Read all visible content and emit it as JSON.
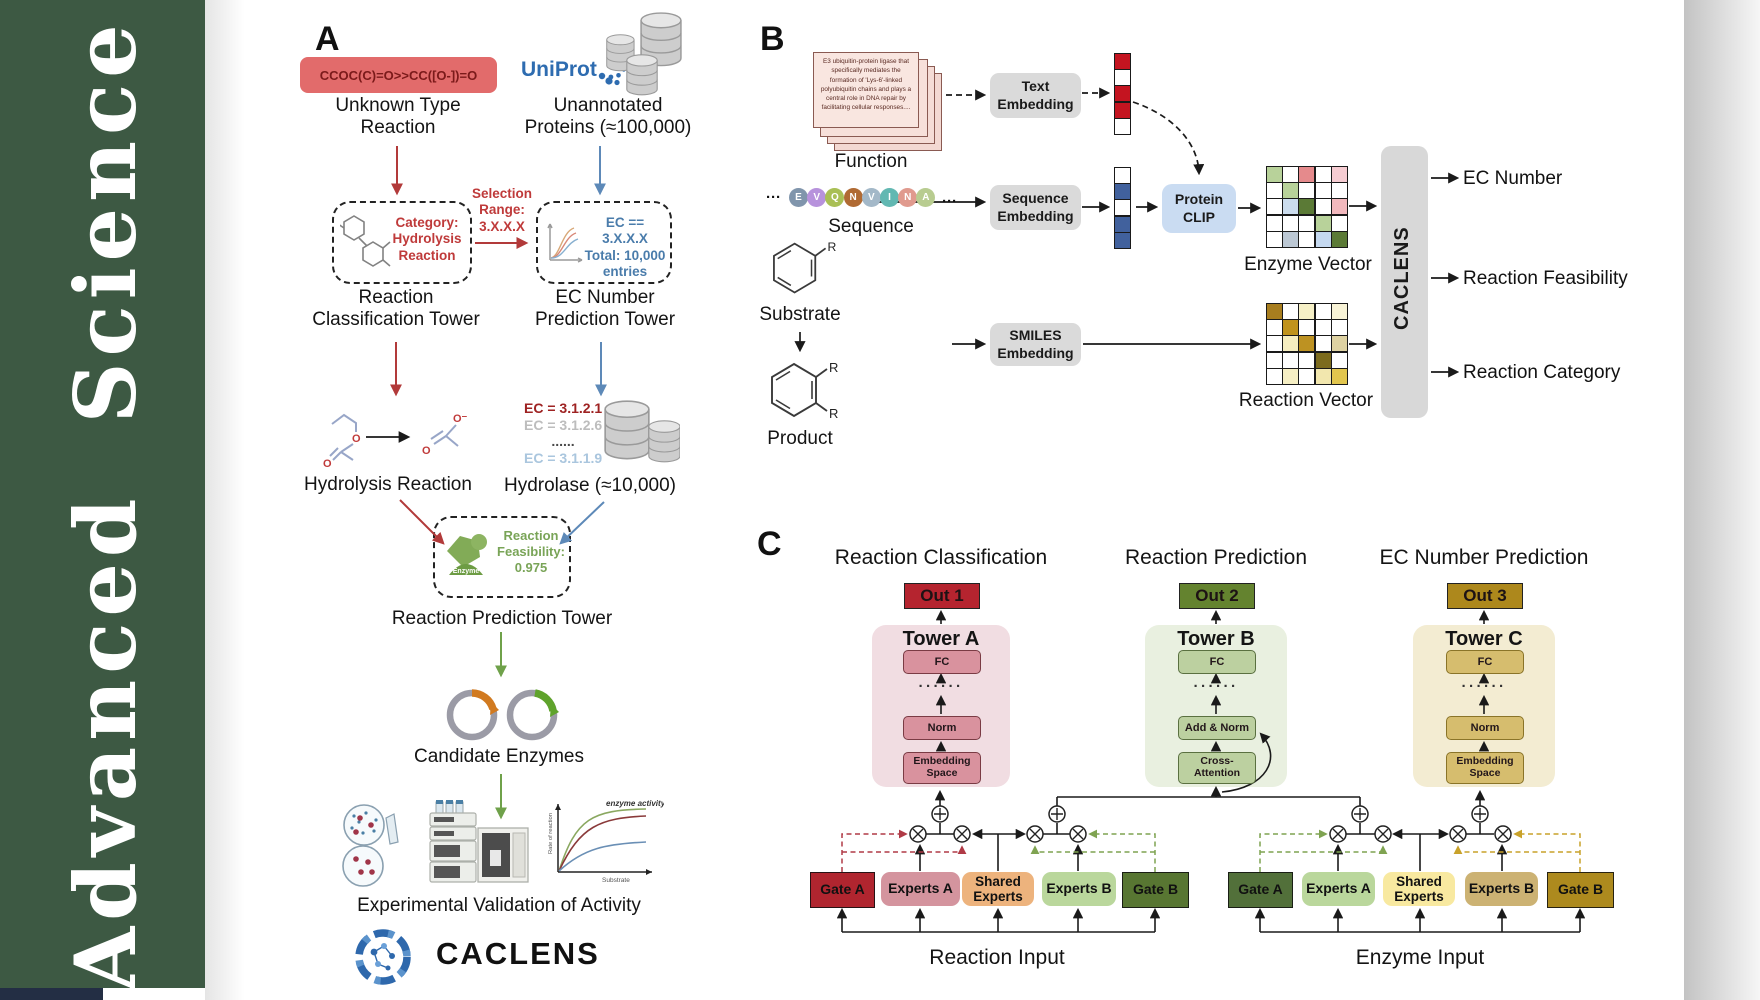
{
  "journal": {
    "name": "Advanced Science",
    "sidebar_bg": "#3d5943"
  },
  "panelA": {
    "label": "A",
    "smiles": "CCOC(C)=O>>CC([O-])=O",
    "smiles_bg": "#e26b6b",
    "unknown_type": "Unknown Type\nReaction",
    "uniprot": "UniProt",
    "unannotated": "Unannotated\nProteins (≈100,000)",
    "category_box": "Category:\nHydrolysis\nReaction",
    "selection": "Selection\nRange:\n3.X.X.X",
    "ec_box": "EC == 3.X.X.X\nTotal: 10,000\nentries",
    "classification_tower": "Reaction\nClassification Tower",
    "ec_tower": "EC Number\nPrediction Tower",
    "hydrolysis_reaction": "Hydrolysis Reaction",
    "ec_list": [
      {
        "text": "EC = 3.1.2.1",
        "color": "#9e2222"
      },
      {
        "text": "EC = 3.1.2.6",
        "color": "#bdbdbd"
      },
      {
        "text": "......",
        "color": "#4a4a4a"
      },
      {
        "text": "EC = 3.1.1.9",
        "color": "#aac6de"
      }
    ],
    "hydrolase": "Hydrolase (≈10,000)",
    "feasibility": "Reaction\nFeasibility:\n0.975",
    "enzyme_badge": "Enzyme",
    "prediction_tower": "Reaction Prediction Tower",
    "candidate_enzymes": "Candidate Enzymes",
    "validation": "Experimental Validation of Activity",
    "kinetics": {
      "annotation": "enzyme activity",
      "ylabel": "Rate of reaction",
      "xlabel": "Substrate"
    },
    "logo": "CACLENS"
  },
  "panelB": {
    "label": "B",
    "function_card": "E3 ubiquitin-protein ligase that specifically mediates the formation of 'Lys-6'-linked polyubiquitin chains and plays a central role in DNA repair by facilitating cellular responses....",
    "function": "Function",
    "dots": "···",
    "residues": [
      {
        "letter": "E",
        "color": "#8095ac"
      },
      {
        "letter": "V",
        "color": "#b792dc"
      },
      {
        "letter": "Q",
        "color": "#a9bf55"
      },
      {
        "letter": "N",
        "color": "#b06a33"
      },
      {
        "letter": "V",
        "color": "#a3b8c8"
      },
      {
        "letter": "I",
        "color": "#62b8b2"
      },
      {
        "letter": "N",
        "color": "#e09a8e"
      },
      {
        "letter": "A",
        "color": "#b8cc90"
      }
    ],
    "sequence": "Sequence",
    "substrate": "Substrate",
    "product": "Product",
    "r_group": "R",
    "text_embedding": "Text\nEmbedding",
    "sequence_embedding": "Sequence\nEmbedding",
    "smiles_embedding": "SMILES\nEmbedding",
    "protein_clip": "Protein\nCLIP",
    "protein_clip_bg": "#cadcf2",
    "text_vector": [
      "#c41420",
      "#ffffff",
      "#c41420",
      "#c41420",
      "#ffffff"
    ],
    "sequence_vector": [
      "#ffffff",
      "#41619d",
      "#ffffff",
      "#41619d",
      "#41619d"
    ],
    "enzyme_vector_label": "Enzyme Vector",
    "reaction_vector_label": "Reaction Vector",
    "enzyme_vector_grid": [
      [
        "#b8d29a",
        "#ffffff",
        "#e58a8c",
        "#ffffff",
        "#f6ccd2"
      ],
      [
        "#ffffff",
        "#b8d29a",
        "#ffffff",
        "#ffffff",
        "#ffffff"
      ],
      [
        "#ffffff",
        "#ccddee",
        "#5b7a36",
        "#ffffff",
        "#f2b8bd"
      ],
      [
        "#ffffff",
        "#ffffff",
        "#ffffff",
        "#b8d29a",
        "#ffffff"
      ],
      [
        "#ffffff",
        "#bcc8d4",
        "#ffffff",
        "#c5d9f0",
        "#5b7a36"
      ]
    ],
    "reaction_vector_grid": [
      [
        "#a87e1f",
        "#ffffff",
        "#f6f0c6",
        "#ffffff",
        "#f8f3d6"
      ],
      [
        "#ffffff",
        "#c0931d",
        "#ffffff",
        "#ffffff",
        "#ffffff"
      ],
      [
        "#ffffff",
        "#f6eec0",
        "#bd9222",
        "#ffffff",
        "#ded2a2"
      ],
      [
        "#ffffff",
        "#ffffff",
        "#ffffff",
        "#7c6b1d",
        "#ffffff"
      ],
      [
        "#ffffff",
        "#f6efc4",
        "#ffffff",
        "#f2e7ae",
        "#e2c64e"
      ]
    ],
    "caclens": "CACLENS",
    "outputs": [
      "EC Number",
      "Reaction Feasibility",
      "Reaction Category"
    ]
  },
  "panelC": {
    "label": "C",
    "dots": "······",
    "columns": [
      {
        "title": "Reaction Classification",
        "out": "Out 1",
        "out_bg": "#b5242f",
        "tower": "Tower A",
        "tower_bg": "#f1dde2",
        "block_bg": "#d9929e",
        "blocks": [
          "FC",
          "Norm",
          "Embedding\nSpace"
        ]
      },
      {
        "title": "Reaction Prediction",
        "out": "Out 2",
        "out_bg": "#64832f",
        "tower": "Tower B",
        "tower_bg": "#e9f0e0",
        "block_bg": "#bcd0a0",
        "blocks": [
          "FC",
          "Add & Norm",
          "Cross-\nAttention"
        ]
      },
      {
        "title": "EC Number Prediction",
        "out": "Out 3",
        "out_bg": "#ad881c",
        "tower": "Tower C",
        "tower_bg": "#f3ecd2",
        "block_bg": "#d6bd6e",
        "blocks": [
          "FC",
          "Norm",
          "Embedding\nSpace"
        ]
      }
    ],
    "moe_left": {
      "input": "Reaction Input",
      "boxes": [
        {
          "label": "Gate A",
          "bg": "#b0252f"
        },
        {
          "label": "Experts A",
          "bg": "#d4949e"
        },
        {
          "label": "Shared\nExperts",
          "bg": "#edb37d"
        },
        {
          "label": "Experts B",
          "bg": "#bad79c"
        },
        {
          "label": "Gate B",
          "bg": "#587632"
        }
      ]
    },
    "moe_right": {
      "input": "Enzyme Input",
      "boxes": [
        {
          "label": "Gate A",
          "bg": "#52703a"
        },
        {
          "label": "Experts A",
          "bg": "#bad79c"
        },
        {
          "label": "Shared\nExperts",
          "bg": "#f8e9a0"
        },
        {
          "label": "Experts B",
          "bg": "#ccb273"
        },
        {
          "label": "Gate B",
          "bg": "#ad8a1e"
        }
      ]
    }
  }
}
